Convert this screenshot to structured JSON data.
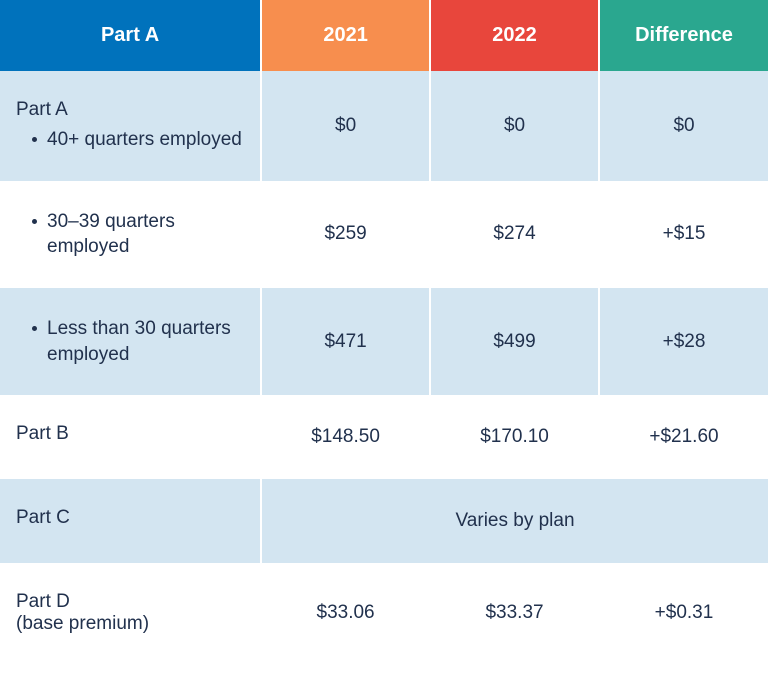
{
  "table": {
    "type": "table",
    "header": {
      "cells": [
        {
          "label": "Part A",
          "bg": "#0072bc"
        },
        {
          "label": "2021",
          "bg": "#f78e4e"
        },
        {
          "label": "2022",
          "bg": "#e8463c"
        },
        {
          "label": "Difference",
          "bg": "#2aa78f"
        }
      ],
      "text_color": "#ffffff",
      "fontsize": 20,
      "fontweight": 600
    },
    "body": {
      "text_color": "#21314d",
      "fontsize": 19,
      "row_bg_alt": "#d3e5f1",
      "row_bg_plain": "#ffffff",
      "column_widths_pct": [
        34,
        22,
        22,
        22
      ],
      "rows": [
        {
          "alt": true,
          "label_heading": "Part A",
          "label_bullet": "40+ quarters employed",
          "y2021": "$0",
          "y2022": "$0",
          "diff": "$0"
        },
        {
          "alt": false,
          "label_bullet": "30–39 quarters employed",
          "y2021": "$259",
          "y2022": "$274",
          "diff": "+$15"
        },
        {
          "alt": true,
          "label_bullet": "Less than 30 quarters employed",
          "y2021": "$471",
          "y2022": "$499",
          "diff": "+$28"
        },
        {
          "alt": false,
          "label_heading": "Part B",
          "y2021": "$148.50",
          "y2022": "$170.10",
          "diff": "+$21.60"
        },
        {
          "alt": true,
          "label_heading": "Part C",
          "merged_text": "Varies by plan"
        },
        {
          "alt": false,
          "label_heading": "Part D",
          "label_sub": "(base premium)",
          "y2021": "$33.06",
          "y2022": "$33.37",
          "diff": "+$0.31"
        }
      ]
    }
  }
}
